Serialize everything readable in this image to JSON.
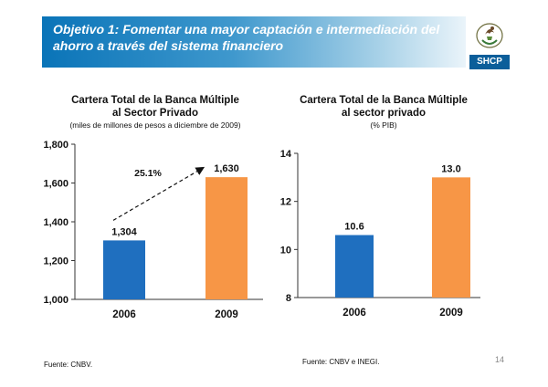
{
  "header": {
    "title": "Objetivo 1: Fomentar una mayor captación e intermediación del ahorro a través del sistema financiero"
  },
  "logo": {
    "label": "SHCP"
  },
  "charts": [
    {
      "title_line1": "Cartera Total de la Banca Múltiple",
      "title_line2": "al Sector Privado",
      "subtitle": "(miles de millones de pesos a diciembre de 2009)",
      "source": "Fuente: CNBV."
    },
    {
      "title_line1": "Cartera Total de la Banca Múltiple",
      "title_line2": "al sector privado",
      "subtitle": "(% PIB)",
      "source": "Fuente: CNBV e INEGI."
    }
  ],
  "page_number": "14",
  "chart_data": [
    {
      "type": "bar",
      "categories": [
        "2006",
        "2009"
      ],
      "values": [
        1304,
        1630
      ],
      "value_labels": [
        "1,304",
        "1,630"
      ],
      "colors": [
        "#1f6fbf",
        "#f79646"
      ],
      "ylim": [
        1000,
        1800
      ],
      "yticks": [
        1000,
        1200,
        1400,
        1600,
        1800
      ],
      "ytick_labels": [
        "1,000",
        "1,200",
        "1,400",
        "1,600",
        "1,800"
      ],
      "annotation": "25.1%",
      "grid": false
    },
    {
      "type": "bar",
      "categories": [
        "2006",
        "2009"
      ],
      "values": [
        10.6,
        13.0
      ],
      "value_labels": [
        "10.6",
        "13.0"
      ],
      "colors": [
        "#1f6fbf",
        "#f79646"
      ],
      "ylim": [
        8,
        14
      ],
      "yticks": [
        8,
        10,
        12,
        14
      ],
      "ytick_labels": [
        "8",
        "10",
        "12",
        "14"
      ],
      "grid": false
    }
  ]
}
